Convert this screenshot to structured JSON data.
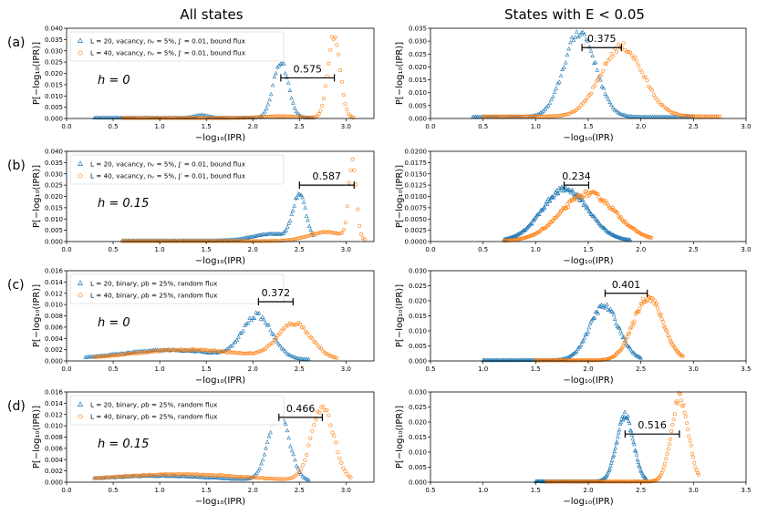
{
  "figure": {
    "column_titles": [
      "All states",
      "States with E < 0.05"
    ],
    "xlabel": "−log₁₀(IPR)",
    "ylabel": "P[−log₁₀(IPR)]",
    "colors": {
      "L20": "#1f77b4",
      "L40": "#ff7f0e"
    }
  },
  "chart_data": [
    {
      "type": "scatter",
      "id": "a-all",
      "panel_label": "(a)",
      "h_label": "h = 0",
      "legend": [
        "L = 20, vacancy, nᵥ = 5%, J′ = 0.01, bound flux",
        "L = 40, vacancy, nᵥ = 5%, J′ = 0.01, bound flux"
      ],
      "xlim": [
        0,
        3.3
      ],
      "ylim": [
        0,
        0.04
      ],
      "xticks": [
        "0.0",
        "0.5",
        "1.0",
        "1.5",
        "2.0",
        "2.5",
        "3.0"
      ],
      "yticks": [
        "0.000",
        "0.005",
        "0.010",
        "0.015",
        "0.020",
        "0.025",
        "0.030",
        "0.035",
        "0.040"
      ],
      "annotation": {
        "text": "0.575",
        "x1": 2.3,
        "x2": 2.875,
        "y": 0.018
      },
      "series": [
        {
          "name": "L = 20",
          "marker": "triangle",
          "range": [
            0.3,
            2.65
          ],
          "peaks": [
            [
              2.3,
              0.025,
              0.08
            ],
            [
              1.45,
              0.0012,
              0.07
            ]
          ],
          "floor": 0.0003
        },
        {
          "name": "L = 40",
          "marker": "circle",
          "range": [
            0.6,
            3.08
          ],
          "peaks": [
            [
              2.87,
              0.037,
              0.065
            ],
            [
              2.3,
              0.0008,
              0.2
            ]
          ],
          "floor": 0.0002
        }
      ]
    },
    {
      "type": "scatter",
      "id": "a-low",
      "panel_label": "",
      "xlim": [
        0,
        3.0
      ],
      "ylim": [
        0,
        0.035
      ],
      "xticks": [
        "0.0",
        "0.5",
        "1.0",
        "1.5",
        "2.0",
        "2.5",
        "3.0"
      ],
      "yticks": [
        "0.000",
        "0.005",
        "0.010",
        "0.015",
        "0.020",
        "0.025",
        "0.030",
        "0.035"
      ],
      "annotation": {
        "text": "0.375",
        "x1": 1.44,
        "x2": 1.815,
        "y": 0.0275
      },
      "series": [
        {
          "name": "L = 20",
          "marker": "triangle",
          "range": [
            0.4,
            2.5
          ],
          "peaks": [
            [
              1.42,
              0.033,
              0.15
            ]
          ],
          "floor": 0.0006
        },
        {
          "name": "L = 40",
          "marker": "circle",
          "range": [
            0.5,
            2.75
          ],
          "peaks": [
            [
              1.82,
              0.027,
              0.2
            ]
          ],
          "floor": 0.0008
        }
      ]
    },
    {
      "type": "scatter",
      "id": "b-all",
      "panel_label": "(b)",
      "h_label": "h = 0.15",
      "legend": [
        "L = 20, vacancy, nᵥ = 5%, J′ = 0.01, bound flux",
        "L = 40, vacancy, nᵥ = 5%, J′ = 0.01, bound flux"
      ],
      "xlim": [
        0,
        3.3
      ],
      "ylim": [
        0,
        0.04
      ],
      "xticks": [
        "0.0",
        "0.5",
        "1.0",
        "1.5",
        "2.0",
        "2.5",
        "3.0"
      ],
      "yticks": [
        "0.000",
        "0.005",
        "0.010",
        "0.015",
        "0.020",
        "0.025",
        "0.030",
        "0.035",
        "0.040"
      ],
      "annotation": {
        "text": "0.587",
        "x1": 2.5,
        "x2": 3.087,
        "y": 0.025
      },
      "series": [
        {
          "name": "L = 20",
          "marker": "triangle",
          "range": [
            0.6,
            2.65
          ],
          "peaks": [
            [
              2.5,
              0.02,
              0.07
            ],
            [
              2.2,
              0.003,
              0.2
            ]
          ],
          "floor": 0.0004
        },
        {
          "name": "L = 40",
          "marker": "circle",
          "range": [
            0.6,
            3.2
          ],
          "peaks": [
            [
              3.07,
              0.035,
              0.04
            ],
            [
              2.8,
              0.004,
              0.2
            ]
          ],
          "floor": 0.0002
        }
      ]
    },
    {
      "type": "scatter",
      "id": "b-low",
      "panel_label": "",
      "xlim": [
        0,
        3.0
      ],
      "ylim": [
        0,
        0.02
      ],
      "xticks": [
        "0.0",
        "0.5",
        "1.0",
        "1.5",
        "2.0",
        "2.5",
        "3.0"
      ],
      "yticks": [
        "0.0000",
        "0.0025",
        "0.0050",
        "0.0075",
        "0.0100",
        "0.0125",
        "0.0150",
        "0.0175",
        "0.0200"
      ],
      "annotation": {
        "text": "0.234",
        "x1": 1.27,
        "x2": 1.504,
        "y": 0.0125
      },
      "series": [
        {
          "name": "L = 20",
          "marker": "triangle",
          "range": [
            0.7,
            1.9
          ],
          "peaks": [
            [
              1.28,
              0.0115,
              0.22
            ]
          ],
          "floor": 0.0001
        },
        {
          "name": "L = 40",
          "marker": "circle",
          "range": [
            0.7,
            2.1
          ],
          "peaks": [
            [
              1.5,
              0.0105,
              0.26
            ]
          ],
          "floor": 0.0001
        }
      ]
    },
    {
      "type": "scatter",
      "id": "c-all",
      "panel_label": "(c)",
      "h_label": "h = 0",
      "legend": [
        "L = 20, binary, ρb = 25%, random flux",
        "L = 40, binary, ρb = 25%, random flux"
      ],
      "xlim": [
        0,
        3.3
      ],
      "ylim": [
        0,
        0.016
      ],
      "xticks": [
        "0.0",
        "0.5",
        "1.0",
        "1.5",
        "2.0",
        "2.5",
        "3.0"
      ],
      "yticks": [
        "0.000",
        "0.002",
        "0.004",
        "0.006",
        "0.008",
        "0.010",
        "0.012",
        "0.014",
        "0.016"
      ],
      "annotation": {
        "text": "0.372",
        "x1": 2.06,
        "x2": 2.432,
        "y": 0.0105
      },
      "series": [
        {
          "name": "L = 20",
          "marker": "triangle",
          "range": [
            0.2,
            2.6
          ],
          "peaks": [
            [
              2.05,
              0.0075,
              0.16
            ],
            [
              1.1,
              0.0017,
              0.55
            ]
          ],
          "floor": 0.0002
        },
        {
          "name": "L = 40",
          "marker": "circle",
          "range": [
            0.3,
            2.9
          ],
          "peaks": [
            [
              2.45,
              0.0062,
              0.18
            ],
            [
              1.3,
              0.0018,
              0.6
            ]
          ],
          "floor": 0.0002
        }
      ]
    },
    {
      "type": "scatter",
      "id": "c-low",
      "panel_label": "",
      "xlim": [
        0.5,
        3.5
      ],
      "ylim": [
        0,
        0.03
      ],
      "xticks": [
        "0.5",
        "1.0",
        "1.5",
        "2.0",
        "2.5",
        "3.0",
        "3.5"
      ],
      "yticks": [
        "0.000",
        "0.005",
        "0.010",
        "0.015",
        "0.020",
        "0.025",
        "0.030"
      ],
      "annotation": {
        "text": "0.401",
        "x1": 2.16,
        "x2": 2.561,
        "y": 0.0225
      },
      "series": [
        {
          "name": "L = 20",
          "marker": "triangle",
          "range": [
            1.0,
            2.5
          ],
          "peaks": [
            [
              2.15,
              0.018,
              0.14
            ]
          ],
          "floor": 0.0002
        },
        {
          "name": "L = 40",
          "marker": "circle",
          "range": [
            1.5,
            2.9
          ],
          "peaks": [
            [
              2.57,
              0.021,
              0.14
            ]
          ],
          "floor": 0.0002
        }
      ]
    },
    {
      "type": "scatter",
      "id": "d-all",
      "panel_label": "(d)",
      "h_label": "h = 0.15",
      "legend": [
        "L = 20, binary, ρb = 25%, random flux",
        "L = 40, binary, ρb = 25%, random flux"
      ],
      "xlim": [
        0,
        3.3
      ],
      "ylim": [
        0,
        0.016
      ],
      "xticks": [
        "0.0",
        "0.5",
        "1.0",
        "1.5",
        "2.0",
        "2.5",
        "3.0"
      ],
      "yticks": [
        "0.000",
        "0.002",
        "0.004",
        "0.006",
        "0.008",
        "0.010",
        "0.012",
        "0.014",
        "0.016"
      ],
      "annotation": {
        "text": "0.466",
        "x1": 2.28,
        "x2": 2.746,
        "y": 0.0115
      },
      "series": [
        {
          "name": "L = 20",
          "marker": "triangle",
          "range": [
            0.3,
            2.6
          ],
          "peaks": [
            [
              2.28,
              0.012,
              0.11
            ],
            [
              1.0,
              0.0009,
              0.6
            ]
          ],
          "floor": 0.0002
        },
        {
          "name": "L = 40",
          "marker": "circle",
          "range": [
            0.3,
            3.05
          ],
          "peaks": [
            [
              2.75,
              0.013,
              0.12
            ],
            [
              1.2,
              0.0012,
              0.7
            ]
          ],
          "floor": 0.0002
        }
      ]
    },
    {
      "type": "scatter",
      "id": "d-low",
      "panel_label": "",
      "xlim": [
        0.5,
        3.5
      ],
      "ylim": [
        0,
        0.03
      ],
      "xticks": [
        "0.5",
        "1.0",
        "1.5",
        "2.0",
        "2.5",
        "3.0",
        "3.5"
      ],
      "yticks": [
        "0.000",
        "0.005",
        "0.010",
        "0.015",
        "0.020",
        "0.025",
        "0.030"
      ],
      "annotation": {
        "text": "0.516",
        "x1": 2.35,
        "x2": 2.866,
        "y": 0.016
      },
      "series": [
        {
          "name": "L = 20",
          "marker": "triangle",
          "range": [
            1.5,
            2.55
          ],
          "peaks": [
            [
              2.35,
              0.022,
              0.08
            ]
          ],
          "floor": 0.0002
        },
        {
          "name": "L = 40",
          "marker": "circle",
          "range": [
            1.6,
            3.05
          ],
          "peaks": [
            [
              2.87,
              0.028,
              0.08
            ]
          ],
          "floor": 0.0002
        }
      ]
    }
  ]
}
